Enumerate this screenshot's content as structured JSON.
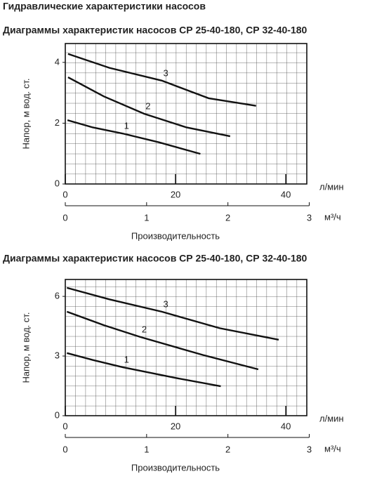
{
  "page_title": "Гидравлические характеристики насосов",
  "chart_data": [
    {
      "type": "line",
      "title": "Диаграммы характеристик насосов СР 25-40-180, СР 32-40-180",
      "ylabel": "Напор, м  вод. ст.",
      "xlabel": "Производительность",
      "xunit": "л/мин",
      "x2unit": "м³/ч",
      "xlim": [
        0,
        43.8
      ],
      "xticks": [
        0,
        20,
        40
      ],
      "x2lim": [
        0,
        2.97
      ],
      "x2ticks": [
        0,
        1,
        2,
        3
      ],
      "ylim": [
        0,
        4.62
      ],
      "yticks": [
        0,
        2,
        4
      ],
      "grid": true,
      "series": [
        {
          "name": "1",
          "color": "#111111",
          "x": [
            0.4,
            5,
            10.4,
            17,
            24.5
          ],
          "values": [
            2.1,
            1.86,
            1.66,
            1.37,
            0.99
          ]
        },
        {
          "name": "2",
          "color": "#111111",
          "x": [
            0.5,
            7,
            14.3,
            22,
            29.9
          ],
          "values": [
            3.51,
            2.88,
            2.31,
            1.86,
            1.57
          ]
        },
        {
          "name": "3",
          "color": "#111111",
          "x": [
            0.5,
            8,
            17.5,
            26,
            34.6
          ],
          "values": [
            4.28,
            3.82,
            3.4,
            2.82,
            2.57
          ]
        }
      ]
    },
    {
      "type": "line",
      "title": "Диаграммы характеристик насосов СР 25-40-180, СР 32-40-180",
      "ylabel": "Напор, м  вод. ст.",
      "xlabel": "Производительность",
      "xunit": "л/мин",
      "x2unit": "м³/ч",
      "xlim": [
        0,
        43.8
      ],
      "xticks": [
        0,
        20,
        40
      ],
      "x2lim": [
        0,
        2.97
      ],
      "x2ticks": [
        0,
        1,
        2,
        3
      ],
      "ylim": [
        0,
        6.85
      ],
      "yticks": [
        0,
        3,
        6
      ],
      "grid": true,
      "series": [
        {
          "name": "1",
          "color": "#111111",
          "x": [
            0.3,
            5,
            10.4,
            20,
            28.2
          ],
          "values": [
            3.15,
            2.8,
            2.44,
            1.9,
            1.48
          ]
        },
        {
          "name": "2",
          "color": "#111111",
          "x": [
            0.3,
            7,
            13.6,
            25,
            35
          ],
          "values": [
            5.23,
            4.55,
            3.96,
            3.05,
            2.33
          ]
        },
        {
          "name": "3",
          "color": "#111111",
          "x": [
            0.3,
            8,
            17.5,
            28,
            38.7
          ],
          "values": [
            6.43,
            5.85,
            5.23,
            4.4,
            3.82
          ]
        }
      ]
    }
  ]
}
